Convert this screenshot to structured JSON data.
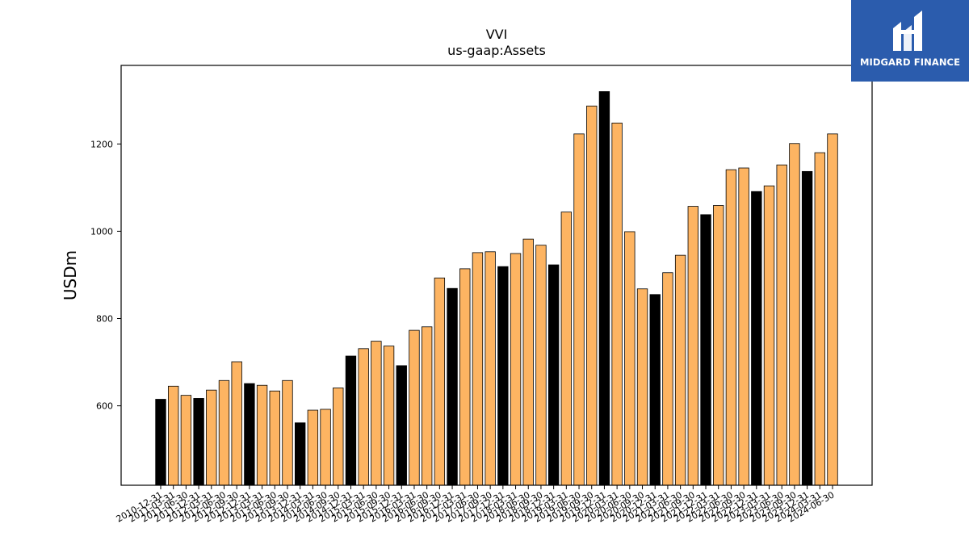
{
  "brand": {
    "name": "MIDGARD FINANCE",
    "color": "#2b5cad",
    "mark_icon": "midgard-logo-icon"
  },
  "chart_data": {
    "type": "bar",
    "title": "VVI",
    "subtitle": "us-gaap:Assets",
    "xlabel": "",
    "ylabel": "USDm",
    "ylim": [
      418,
      1380
    ],
    "yticks": [
      600,
      800,
      1000,
      1200
    ],
    "grid": false,
    "colors": {
      "year_end": "#000000",
      "quarter": "#fdb462",
      "edge": "#000000"
    },
    "categories": [
      "2010-12-31",
      "2011-03-31",
      "2011-06-30",
      "2011-12-31",
      "2012-03-31",
      "2012-06-30",
      "2012-09-30",
      "2012-12-31",
      "2013-03-31",
      "2013-06-30",
      "2013-09-30",
      "2013-12-31",
      "2014-03-31",
      "2014-06-30",
      "2014-09-30",
      "2014-12-31",
      "2015-03-31",
      "2015-06-30",
      "2015-09-30",
      "2015-12-31",
      "2016-03-31",
      "2016-06-30",
      "2016-09-30",
      "2016-12-31",
      "2017-03-31",
      "2017-06-30",
      "2017-09-30",
      "2017-12-31",
      "2018-03-31",
      "2018-06-30",
      "2018-09-30",
      "2018-12-31",
      "2019-03-31",
      "2019-06-30",
      "2019-09-30",
      "2019-12-31",
      "2020-03-31",
      "2020-06-30",
      "2020-09-30",
      "2020-12-31",
      "2021-03-31",
      "2021-06-30",
      "2021-09-30",
      "2021-12-31",
      "2022-03-31",
      "2022-06-30",
      "2022-09-30",
      "2022-12-31",
      "2023-03-31",
      "2023-06-30",
      "2023-09-30",
      "2023-12-31",
      "2024-03-31",
      "2024-06-30"
    ],
    "values": [
      615,
      645,
      624,
      617,
      636,
      658,
      701,
      651,
      647,
      634,
      658,
      561,
      590,
      592,
      641,
      714,
      731,
      748,
      737,
      692,
      773,
      781,
      893,
      869,
      914,
      951,
      953,
      919,
      949,
      982,
      968,
      923,
      1044,
      1223,
      1287,
      1320,
      1248,
      999,
      868,
      855,
      905,
      945,
      1057,
      1038,
      1059,
      1141,
      1145,
      1091,
      1104,
      1152,
      1201,
      1137,
      1180,
      1223
    ],
    "year_end": [
      true,
      false,
      false,
      true,
      false,
      false,
      false,
      true,
      false,
      false,
      false,
      true,
      false,
      false,
      false,
      true,
      false,
      false,
      false,
      true,
      false,
      false,
      false,
      true,
      false,
      false,
      false,
      true,
      false,
      false,
      false,
      true,
      false,
      false,
      false,
      true,
      false,
      false,
      false,
      true,
      false,
      false,
      false,
      true,
      false,
      false,
      false,
      true,
      false,
      false,
      false,
      true,
      false,
      false
    ]
  }
}
